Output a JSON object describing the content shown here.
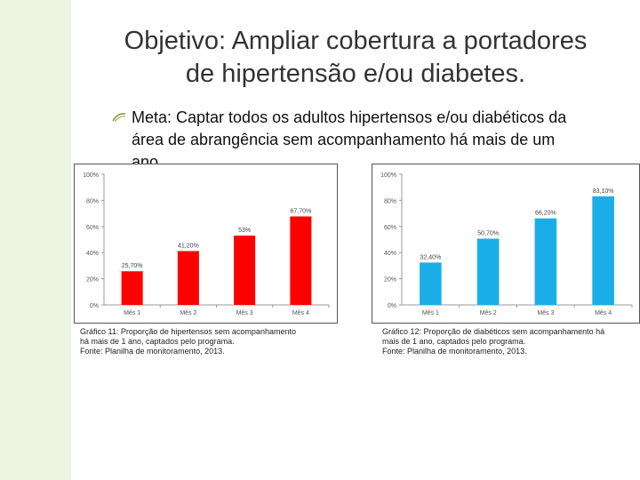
{
  "slide": {
    "title_line1": "Objetivo: Ampliar cobertura a portadores",
    "title_line2": "de hipertensão e/ou diabetes.",
    "bullet_line1": "Meta: Captar todos os adultos hipertensos e/ou diabéticos da",
    "bullet_line2": "área de abrangência sem acompanhamento há mais de um",
    "bullet_line3": "ano.",
    "bullet_icon": "bullet-icon",
    "accent_color": "#eef3e2"
  },
  "captions": {
    "chart1": {
      "line1": "Gráfico 11: Proporção de hipertensos sem acompanhamento",
      "line2": "há mais de 1 ano, captados pelo programa.",
      "line3": "Fonte: Planilha de monitoramento, 2013."
    },
    "chart2": {
      "line1": "Gráfico 12: Proporção de diabéticos sem acompanhamento há",
      "line2": "mais de 1 ano, captados pelo programa.",
      "line3": "Fonte: Planilha de monitoramento, 2013."
    }
  },
  "chart_data": [
    {
      "type": "bar",
      "title": "",
      "categories": [
        "Mês 1",
        "Mês 2",
        "Mês 3",
        "Mês 4"
      ],
      "values": [
        25.7,
        41.2,
        53,
        67.7
      ],
      "value_labels": [
        "25,70%",
        "41,20%",
        "53%",
        "67,70%"
      ],
      "yticks": [
        "0%",
        "20%",
        "40%",
        "60%",
        "80%",
        "100%"
      ],
      "ylim": [
        0,
        100
      ],
      "grid": false,
      "color": "#ff0000",
      "xlabel": "",
      "ylabel": ""
    },
    {
      "type": "bar",
      "title": "",
      "categories": [
        "Mês 1",
        "Mês 2",
        "Mês 3",
        "Mês 4"
      ],
      "values": [
        32.4,
        50.7,
        66.2,
        83.1
      ],
      "value_labels": [
        "32,40%",
        "50,70%",
        "66,20%",
        "83,10%"
      ],
      "yticks": [
        "0%",
        "20%",
        "40%",
        "60%",
        "80%",
        "100%"
      ],
      "ylim": [
        0,
        100
      ],
      "grid": false,
      "color": "#1aaee8",
      "xlabel": "",
      "ylabel": ""
    }
  ]
}
